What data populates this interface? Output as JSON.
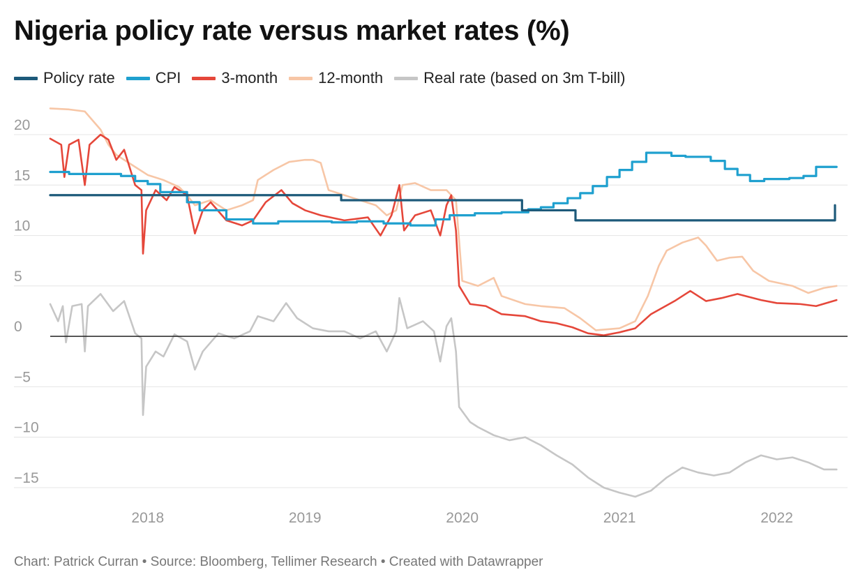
{
  "title": "Nigeria policy rate versus market rates (%)",
  "footer": {
    "chart_by": "Chart: Patrick Curran",
    "source": "Source: Bloomberg, Tellimer Research",
    "created": "Created with Datawrapper",
    "separator": "•"
  },
  "chart_data": {
    "type": "line",
    "title": "Nigeria policy rate versus market rates (%)",
    "xlabel": "",
    "ylabel": "",
    "xlim": [
      2017.38,
      2022.45
    ],
    "ylim": [
      -16.5,
      23.5
    ],
    "y_ticks": [
      20,
      15,
      10,
      5,
      0,
      -5,
      -10,
      -15
    ],
    "y_tick_labels": [
      "20",
      "15",
      "10",
      "5",
      "0",
      "−5",
      "−10",
      "−15"
    ],
    "x_ticks": [
      2018,
      2019,
      2020,
      2021,
      2022
    ],
    "x_tick_labels": [
      "2018",
      "2019",
      "2020",
      "2021",
      "2022"
    ],
    "grid": true,
    "legend_position": "top-left",
    "series": [
      {
        "name": "Policy rate",
        "color": "#1d5a7a",
        "step": true,
        "points": [
          [
            2017.38,
            14
          ],
          [
            2019.23,
            14
          ],
          [
            2019.23,
            13.5
          ],
          [
            2020.38,
            13.5
          ],
          [
            2020.38,
            12.5
          ],
          [
            2020.72,
            12.5
          ],
          [
            2020.72,
            11.5
          ],
          [
            2022.37,
            11.5
          ],
          [
            2022.37,
            13
          ]
        ]
      },
      {
        "name": "CPI",
        "color": "#1fa0cf",
        "step": true,
        "points": [
          [
            2017.38,
            16.3
          ],
          [
            2017.5,
            16.1
          ],
          [
            2017.83,
            15.9
          ],
          [
            2017.92,
            15.4
          ],
          [
            2018.0,
            15.1
          ],
          [
            2018.08,
            14.3
          ],
          [
            2018.17,
            14.3
          ],
          [
            2018.25,
            13.3
          ],
          [
            2018.33,
            12.5
          ],
          [
            2018.5,
            11.6
          ],
          [
            2018.67,
            11.2
          ],
          [
            2018.83,
            11.4
          ],
          [
            2019.0,
            11.4
          ],
          [
            2019.17,
            11.3
          ],
          [
            2019.33,
            11.4
          ],
          [
            2019.5,
            11.2
          ],
          [
            2019.67,
            11.0
          ],
          [
            2019.83,
            11.6
          ],
          [
            2019.92,
            12.0
          ],
          [
            2020.08,
            12.2
          ],
          [
            2020.25,
            12.3
          ],
          [
            2020.42,
            12.6
          ],
          [
            2020.5,
            12.8
          ],
          [
            2020.58,
            13.2
          ],
          [
            2020.67,
            13.7
          ],
          [
            2020.75,
            14.2
          ],
          [
            2020.83,
            14.9
          ],
          [
            2020.92,
            15.8
          ],
          [
            2021.0,
            16.5
          ],
          [
            2021.08,
            17.3
          ],
          [
            2021.17,
            18.2
          ],
          [
            2021.33,
            17.9
          ],
          [
            2021.42,
            17.8
          ],
          [
            2021.58,
            17.4
          ],
          [
            2021.67,
            16.6
          ],
          [
            2021.75,
            16.0
          ],
          [
            2021.83,
            15.4
          ],
          [
            2021.92,
            15.6
          ],
          [
            2022.08,
            15.7
          ],
          [
            2022.17,
            15.9
          ],
          [
            2022.25,
            16.8
          ],
          [
            2022.38,
            16.8
          ]
        ]
      },
      {
        "name": "3-month",
        "color": "#e5473a",
        "step": false,
        "points": [
          [
            2017.38,
            19.6
          ],
          [
            2017.45,
            19.0
          ],
          [
            2017.47,
            15.8
          ],
          [
            2017.5,
            19.0
          ],
          [
            2017.56,
            19.5
          ],
          [
            2017.6,
            15.0
          ],
          [
            2017.63,
            19.0
          ],
          [
            2017.7,
            20.0
          ],
          [
            2017.75,
            19.5
          ],
          [
            2017.8,
            17.5
          ],
          [
            2017.85,
            18.5
          ],
          [
            2017.92,
            15.0
          ],
          [
            2017.96,
            14.5
          ],
          [
            2017.97,
            8.2
          ],
          [
            2017.99,
            12.5
          ],
          [
            2018.05,
            14.5
          ],
          [
            2018.12,
            13.5
          ],
          [
            2018.17,
            14.8
          ],
          [
            2018.25,
            14.0
          ],
          [
            2018.3,
            10.2
          ],
          [
            2018.35,
            12.5
          ],
          [
            2018.4,
            13.3
          ],
          [
            2018.5,
            11.5
          ],
          [
            2018.6,
            11.0
          ],
          [
            2018.67,
            11.5
          ],
          [
            2018.75,
            13.3
          ],
          [
            2018.85,
            14.5
          ],
          [
            2018.92,
            13.2
          ],
          [
            2019.0,
            12.5
          ],
          [
            2019.1,
            12.0
          ],
          [
            2019.25,
            11.5
          ],
          [
            2019.4,
            11.8
          ],
          [
            2019.48,
            10.0
          ],
          [
            2019.55,
            12.0
          ],
          [
            2019.6,
            15.0
          ],
          [
            2019.63,
            10.5
          ],
          [
            2019.7,
            12.0
          ],
          [
            2019.8,
            12.5
          ],
          [
            2019.86,
            10.0
          ],
          [
            2019.9,
            13.0
          ],
          [
            2019.93,
            14.0
          ],
          [
            2019.96,
            10.5
          ],
          [
            2019.98,
            5.0
          ],
          [
            2020.05,
            3.2
          ],
          [
            2020.15,
            3.0
          ],
          [
            2020.25,
            2.2
          ],
          [
            2020.4,
            2.0
          ],
          [
            2020.5,
            1.5
          ],
          [
            2020.6,
            1.3
          ],
          [
            2020.7,
            0.9
          ],
          [
            2020.8,
            0.3
          ],
          [
            2020.9,
            0.1
          ],
          [
            2021.0,
            0.4
          ],
          [
            2021.1,
            0.8
          ],
          [
            2021.2,
            2.2
          ],
          [
            2021.35,
            3.5
          ],
          [
            2021.45,
            4.5
          ],
          [
            2021.55,
            3.5
          ],
          [
            2021.65,
            3.8
          ],
          [
            2021.75,
            4.2
          ],
          [
            2021.9,
            3.6
          ],
          [
            2022.0,
            3.3
          ],
          [
            2022.15,
            3.2
          ],
          [
            2022.25,
            3.0
          ],
          [
            2022.38,
            3.6
          ]
        ]
      },
      {
        "name": "12-month",
        "color": "#f7c6a6",
        "step": false,
        "points": [
          [
            2017.38,
            22.6
          ],
          [
            2017.5,
            22.5
          ],
          [
            2017.6,
            22.3
          ],
          [
            2017.7,
            20.5
          ],
          [
            2017.75,
            19.0
          ],
          [
            2017.8,
            18.0
          ],
          [
            2017.9,
            17.0
          ],
          [
            2018.0,
            16.0
          ],
          [
            2018.1,
            15.5
          ],
          [
            2018.2,
            14.8
          ],
          [
            2018.25,
            14.0
          ],
          [
            2018.3,
            13.0
          ],
          [
            2018.4,
            13.5
          ],
          [
            2018.5,
            12.5
          ],
          [
            2018.6,
            13.0
          ],
          [
            2018.67,
            13.5
          ],
          [
            2018.7,
            15.5
          ],
          [
            2018.8,
            16.5
          ],
          [
            2018.9,
            17.3
          ],
          [
            2019.0,
            17.5
          ],
          [
            2019.05,
            17.5
          ],
          [
            2019.1,
            17.2
          ],
          [
            2019.15,
            14.5
          ],
          [
            2019.25,
            14.0
          ],
          [
            2019.35,
            13.5
          ],
          [
            2019.45,
            13.0
          ],
          [
            2019.52,
            12.0
          ],
          [
            2019.58,
            12.5
          ],
          [
            2019.62,
            15.0
          ],
          [
            2019.7,
            15.2
          ],
          [
            2019.8,
            14.5
          ],
          [
            2019.9,
            14.5
          ],
          [
            2019.96,
            13.5
          ],
          [
            2020.0,
            5.5
          ],
          [
            2020.1,
            5.0
          ],
          [
            2020.2,
            5.8
          ],
          [
            2020.25,
            4.0
          ],
          [
            2020.4,
            3.2
          ],
          [
            2020.5,
            3.0
          ],
          [
            2020.65,
            2.8
          ],
          [
            2020.75,
            1.8
          ],
          [
            2020.85,
            0.6
          ],
          [
            2021.0,
            0.8
          ],
          [
            2021.1,
            1.5
          ],
          [
            2021.18,
            4.0
          ],
          [
            2021.25,
            7.0
          ],
          [
            2021.3,
            8.5
          ],
          [
            2021.4,
            9.3
          ],
          [
            2021.5,
            9.8
          ],
          [
            2021.55,
            9.0
          ],
          [
            2021.62,
            7.5
          ],
          [
            2021.7,
            7.8
          ],
          [
            2021.78,
            7.9
          ],
          [
            2021.85,
            6.5
          ],
          [
            2021.95,
            5.5
          ],
          [
            2022.1,
            5.0
          ],
          [
            2022.2,
            4.3
          ],
          [
            2022.3,
            4.8
          ],
          [
            2022.38,
            5.0
          ]
        ]
      },
      {
        "name": "Real rate (based on 3m T-bill)",
        "color": "#c6c6c6",
        "step": false,
        "points": [
          [
            2017.38,
            3.2
          ],
          [
            2017.43,
            1.5
          ],
          [
            2017.46,
            3.0
          ],
          [
            2017.48,
            -0.6
          ],
          [
            2017.52,
            3.0
          ],
          [
            2017.58,
            3.2
          ],
          [
            2017.6,
            -1.5
          ],
          [
            2017.62,
            3.0
          ],
          [
            2017.7,
            4.2
          ],
          [
            2017.78,
            2.5
          ],
          [
            2017.85,
            3.5
          ],
          [
            2017.92,
            0.3
          ],
          [
            2017.96,
            -0.2
          ],
          [
            2017.97,
            -7.8
          ],
          [
            2017.99,
            -3.0
          ],
          [
            2018.05,
            -1.5
          ],
          [
            2018.1,
            -2.0
          ],
          [
            2018.17,
            0.2
          ],
          [
            2018.25,
            -0.5
          ],
          [
            2018.3,
            -3.3
          ],
          [
            2018.35,
            -1.5
          ],
          [
            2018.45,
            0.3
          ],
          [
            2018.55,
            -0.2
          ],
          [
            2018.65,
            0.5
          ],
          [
            2018.7,
            2.0
          ],
          [
            2018.8,
            1.5
          ],
          [
            2018.88,
            3.3
          ],
          [
            2018.95,
            1.8
          ],
          [
            2019.05,
            0.8
          ],
          [
            2019.15,
            0.5
          ],
          [
            2019.25,
            0.5
          ],
          [
            2019.35,
            -0.2
          ],
          [
            2019.45,
            0.5
          ],
          [
            2019.52,
            -1.5
          ],
          [
            2019.58,
            0.5
          ],
          [
            2019.6,
            3.8
          ],
          [
            2019.65,
            0.8
          ],
          [
            2019.75,
            1.5
          ],
          [
            2019.82,
            0.5
          ],
          [
            2019.86,
            -2.5
          ],
          [
            2019.9,
            1.0
          ],
          [
            2019.93,
            1.8
          ],
          [
            2019.96,
            -1.5
          ],
          [
            2019.98,
            -7.0
          ],
          [
            2020.05,
            -8.5
          ],
          [
            2020.1,
            -9.0
          ],
          [
            2020.2,
            -9.8
          ],
          [
            2020.3,
            -10.3
          ],
          [
            2020.4,
            -10.0
          ],
          [
            2020.5,
            -10.8
          ],
          [
            2020.6,
            -11.8
          ],
          [
            2020.7,
            -12.7
          ],
          [
            2020.8,
            -14.0
          ],
          [
            2020.9,
            -15.0
          ],
          [
            2021.0,
            -15.5
          ],
          [
            2021.1,
            -15.9
          ],
          [
            2021.2,
            -15.3
          ],
          [
            2021.3,
            -14.0
          ],
          [
            2021.4,
            -13.0
          ],
          [
            2021.5,
            -13.5
          ],
          [
            2021.6,
            -13.8
          ],
          [
            2021.7,
            -13.5
          ],
          [
            2021.8,
            -12.5
          ],
          [
            2021.9,
            -11.8
          ],
          [
            2022.0,
            -12.2
          ],
          [
            2022.1,
            -12.0
          ],
          [
            2022.2,
            -12.5
          ],
          [
            2022.3,
            -13.2
          ],
          [
            2022.38,
            -13.2
          ]
        ]
      }
    ]
  }
}
